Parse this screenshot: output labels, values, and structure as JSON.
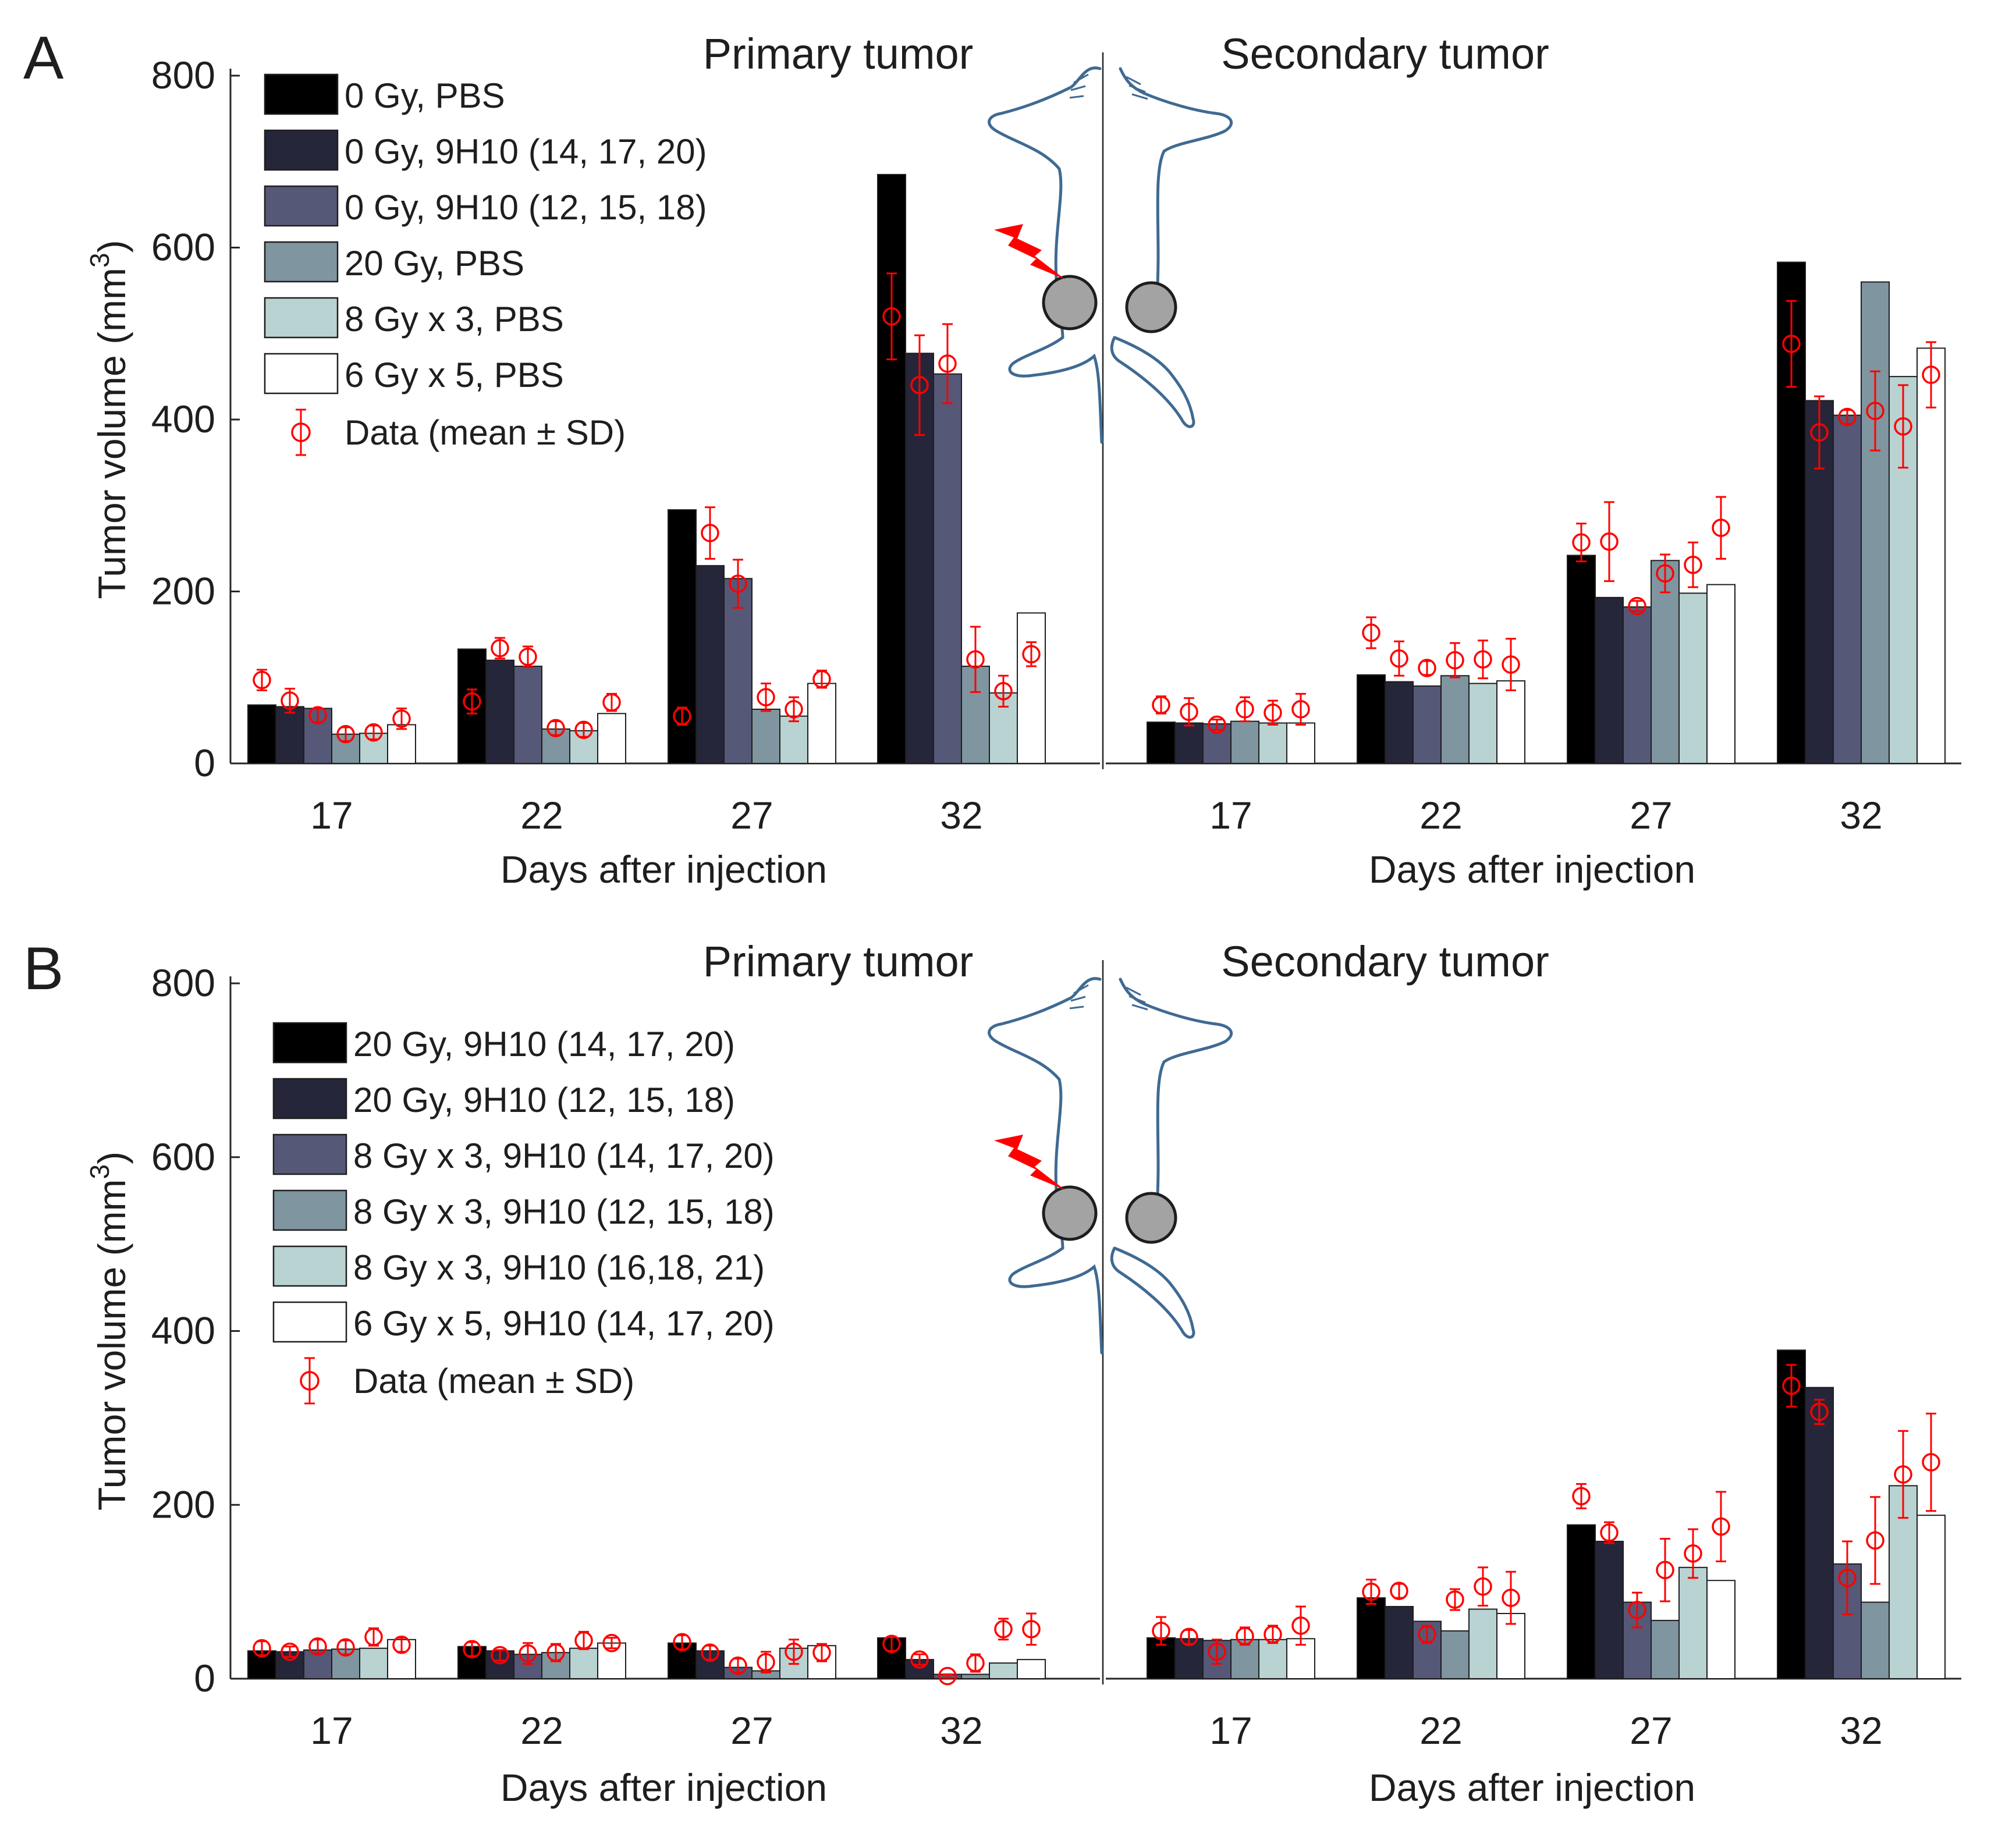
{
  "chart_data": [
    {
      "type": "bar",
      "panel_label": "A",
      "ylabel": "Tumor volume (mm",
      "ylabel_sup": "3",
      "ylabel_close": ")",
      "xlabel": "Days after injection",
      "subplot_titles": [
        "Primary tumor",
        "Secondary tumor"
      ],
      "categories": [
        "17",
        "22",
        "27",
        "32"
      ],
      "yticks": [
        "0",
        "200",
        "400",
        "600",
        "800"
      ],
      "ylim": [
        0,
        800
      ],
      "grid": false,
      "legend_position": "top-left",
      "series": [
        {
          "name": "0  Gy, PBS",
          "color": "#000000",
          "primary": [
            68,
            133,
            295,
            685
          ],
          "secondary": [
            48,
            103,
            242,
            583
          ],
          "data_primary": [
            97,
            72,
            55,
            520
          ],
          "sd_primary": [
            12,
            14,
            10,
            50
          ],
          "data_secondary": [
            68,
            152,
            257,
            488
          ],
          "sd_secondary": [
            10,
            18,
            22,
            50
          ]
        },
        {
          "name": "0  Gy, 9H10 (14, 17, 20)",
          "color": "#26263a",
          "primary": [
            66,
            120,
            230,
            477
          ],
          "secondary": [
            47,
            95,
            193,
            422
          ],
          "data_primary": [
            73,
            134,
            268,
            440
          ],
          "sd_primary": [
            14,
            12,
            30,
            58
          ],
          "data_secondary": [
            60,
            122,
            258,
            385
          ],
          "sd_secondary": [
            16,
            20,
            46,
            42
          ]
        },
        {
          "name": "0  Gy, 9H10 (12, 15, 18)",
          "color": "#565877",
          "primary": [
            64,
            113,
            215,
            453
          ],
          "secondary": [
            46,
            90,
            182,
            405
          ],
          "data_primary": [
            56,
            124,
            209,
            465
          ],
          "sd_primary": [
            8,
            12,
            28,
            46
          ],
          "data_secondary": [
            45,
            111,
            183,
            403
          ],
          "sd_secondary": [
            6,
            8,
            6,
            8
          ]
        },
        {
          "name": "20 Gy, PBS",
          "color": "#7f95a0",
          "primary": [
            34,
            40,
            63,
            113
          ],
          "secondary": [
            49,
            102,
            236,
            560
          ],
          "data_primary": [
            34,
            41,
            77,
            121
          ],
          "sd_primary": [
            8,
            8,
            16,
            38
          ],
          "data_secondary": [
            63,
            120,
            221,
            410
          ],
          "sd_secondary": [
            14,
            20,
            22,
            46
          ]
        },
        {
          "name": "8  Gy x 3, PBS",
          "color": "#b9d2d2",
          "primary": [
            35,
            38,
            55,
            82
          ],
          "secondary": [
            47,
            93,
            198,
            450
          ],
          "data_primary": [
            36,
            39,
            63,
            84
          ],
          "sd_primary": [
            8,
            8,
            14,
            18
          ],
          "data_secondary": [
            59,
            121,
            231,
            392
          ],
          "sd_secondary": [
            14,
            22,
            26,
            48
          ]
        },
        {
          "name": "6  Gy x 5, PBS",
          "color": "#ffffff",
          "primary": [
            45,
            58,
            93,
            175
          ],
          "secondary": [
            47,
            96,
            208,
            483
          ],
          "data_primary": [
            52,
            71,
            98,
            127
          ],
          "sd_primary": [
            12,
            10,
            10,
            14
          ],
          "data_secondary": [
            63,
            115,
            274,
            452
          ],
          "sd_secondary": [
            18,
            30,
            36,
            38
          ]
        }
      ],
      "data_legend": "Data (mean ± SD)"
    },
    {
      "type": "bar",
      "panel_label": "B",
      "ylabel": "Tumor volume (mm",
      "ylabel_sup": "3",
      "ylabel_close": ")",
      "xlabel": "Days after injection",
      "subplot_titles": [
        "Primary tumor",
        "Secondary tumor"
      ],
      "categories": [
        "17",
        "22",
        "27",
        "32"
      ],
      "yticks": [
        "0",
        "200",
        "400",
        "600",
        "800"
      ],
      "ylim": [
        0,
        800
      ],
      "grid": false,
      "legend_position": "top-left",
      "series": [
        {
          "name": "20 Gy, 9H10 (14, 17, 20)",
          "color": "#000000",
          "primary": [
            32,
            37,
            41,
            47
          ],
          "secondary": [
            47,
            93,
            177,
            378
          ],
          "data_primary": [
            35,
            34,
            42,
            40
          ],
          "sd_primary": [
            8,
            8,
            8,
            8
          ],
          "data_secondary": [
            55,
            100,
            210,
            337
          ],
          "sd_secondary": [
            16,
            14,
            14,
            24
          ]
        },
        {
          "name": "20 Gy, 9H10 (12, 15, 18)",
          "color": "#26263a",
          "primary": [
            31,
            32,
            32,
            22
          ],
          "secondary": [
            46,
            83,
            158,
            335
          ],
          "data_primary": [
            31,
            27,
            30,
            22
          ],
          "sd_primary": [
            6,
            6,
            8,
            6
          ],
          "data_secondary": [
            48,
            101,
            168,
            307
          ],
          "sd_secondary": [
            8,
            8,
            12,
            14
          ]
        },
        {
          "name": "8  Gy x 3, 9H10 (14, 17, 20)",
          "color": "#565877",
          "primary": [
            33,
            28,
            13,
            5
          ],
          "secondary": [
            44,
            66,
            88,
            132
          ],
          "data_primary": [
            37,
            29,
            15,
            3
          ],
          "sd_primary": [
            8,
            12,
            8,
            2
          ],
          "data_secondary": [
            31,
            51,
            79,
            116
          ],
          "sd_secondary": [
            14,
            10,
            20,
            42
          ]
        },
        {
          "name": "8  Gy x 3, 9H10 (12, 15, 18)",
          "color": "#7f95a0",
          "primary": [
            34,
            30,
            9,
            5
          ],
          "secondary": [
            45,
            55,
            67,
            88
          ],
          "data_primary": [
            36,
            30,
            19,
            18
          ],
          "sd_primary": [
            8,
            10,
            12,
            10
          ],
          "data_secondary": [
            49,
            91,
            125,
            159
          ],
          "sd_secondary": [
            10,
            12,
            36,
            50
          ]
        },
        {
          "name": "8  Gy x 3, 9H10 (16,18, 21)",
          "color": "#b9d2d2",
          "primary": [
            35,
            35,
            35,
            18
          ],
          "secondary": [
            45,
            80,
            128,
            222
          ],
          "data_primary": [
            48,
            44,
            31,
            57
          ],
          "sd_primary": [
            10,
            10,
            14,
            12
          ],
          "data_secondary": [
            51,
            106,
            144,
            235
          ],
          "sd_secondary": [
            10,
            22,
            28,
            50
          ]
        },
        {
          "name": "6  Gy x 5, 9H10 (14, 17, 20)",
          "color": "#ffffff",
          "primary": [
            45,
            41,
            38,
            22
          ],
          "secondary": [
            46,
            75,
            113,
            188
          ],
          "data_primary": [
            39,
            41,
            30,
            57
          ],
          "sd_primary": [
            8,
            6,
            10,
            18
          ],
          "data_secondary": [
            61,
            93,
            175,
            249
          ],
          "sd_secondary": [
            22,
            30,
            40,
            56
          ]
        }
      ],
      "data_legend": "Data (mean ± SD)"
    }
  ]
}
